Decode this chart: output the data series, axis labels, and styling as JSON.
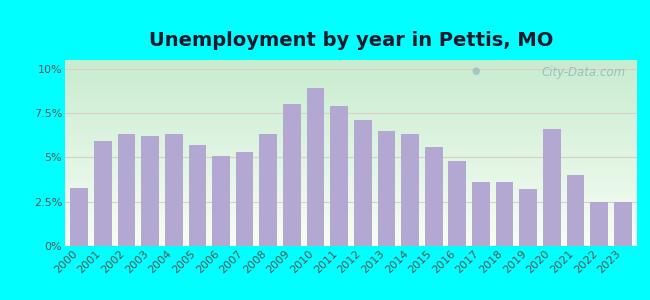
{
  "title": "Unemployment by year in Pettis, MO",
  "years": [
    2000,
    2001,
    2002,
    2003,
    2004,
    2005,
    2006,
    2007,
    2008,
    2009,
    2010,
    2011,
    2012,
    2013,
    2014,
    2015,
    2016,
    2017,
    2018,
    2019,
    2020,
    2021,
    2022,
    2023
  ],
  "values": [
    3.3,
    5.9,
    6.3,
    6.2,
    6.3,
    5.7,
    5.1,
    5.3,
    6.3,
    8.0,
    8.9,
    7.9,
    7.1,
    6.5,
    6.3,
    5.6,
    4.8,
    3.6,
    3.6,
    3.2,
    6.6,
    4.0,
    2.5,
    2.5
  ],
  "bar_color": "#b3a8d1",
  "bg_outer": "#00FFFF",
  "yticks": [
    0,
    2.5,
    5.0,
    7.5,
    10.0
  ],
  "ytick_labels": [
    "0%",
    "2.5%",
    "5%",
    "7.5%",
    "10%"
  ],
  "ylim": [
    0,
    10.5
  ],
  "watermark": "City-Data.com",
  "title_fontsize": 14,
  "tick_fontsize": 8
}
